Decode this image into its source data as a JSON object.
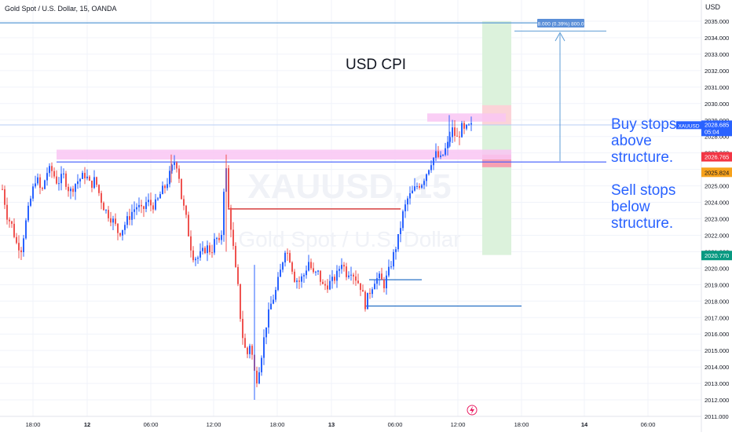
{
  "header": {
    "symbol_title": "Gold Spot / U.S. Dollar, 15, OANDA",
    "currency": "USD"
  },
  "annotations": {
    "event": "USD CPI",
    "buy_note": "Buy stops\nabove\nstructure.",
    "sell_note": "Sell stops\nbelow\nstructure.",
    "measure_label": "8.000 (0.39%) 800.0"
  },
  "watermark": {
    "symbol": "XAUUSD, 15",
    "name": "Gold Spot / U.S. Dollar"
  },
  "colors": {
    "up": "#2962ff",
    "down": "#ef5350",
    "zone_pink": "#f9c6f3",
    "green_zone": "#dcf2dc",
    "line_blue": "#5b9bd5",
    "grid": "#f0f3fa",
    "axis_text": "#131722"
  },
  "chart_data": {
    "type": "candlestick",
    "symbol": "XAUUSD",
    "interval": "15",
    "ylim": [
      2011.0,
      2036.0
    ],
    "y_ticks": [
      "2011.000",
      "2012.000",
      "2013.000",
      "2014.000",
      "2015.000",
      "2016.000",
      "2017.000",
      "2018.000",
      "2019.000",
      "2020.000",
      "2021.000",
      "2022.000",
      "2023.000",
      "2024.000",
      "2025.000",
      "2026.000",
      "2027.000",
      "2028.000",
      "2029.000",
      "2030.000",
      "2031.000",
      "2032.000",
      "2033.000",
      "2034.000",
      "2035.000"
    ],
    "x_ticks": [
      "18:00",
      "12",
      "06:00",
      "12:00",
      "18:00",
      "13",
      "06:00",
      "12:00",
      "18:00",
      "14",
      "06:00"
    ],
    "price_labels": [
      {
        "name": "XAUUSD",
        "value": "2028.685",
        "sub": "05:04",
        "color": "#2962ff"
      },
      {
        "name": "",
        "value": "2026.765",
        "color": "#f23645"
      },
      {
        "name": "",
        "value": "2025.824",
        "color": "#f7a21b"
      },
      {
        "name": "",
        "value": "2020.770",
        "color": "#089981"
      }
    ],
    "levels": {
      "top_line": 2034.9,
      "upper_target": 2034.4,
      "buy_zone": [
        2026.6,
        2027.2
      ],
      "sell_zone": [
        2025.6,
        2026.8
      ],
      "current": 2028.7,
      "cpi_low_line": 2023.6,
      "mid_line": 2019.3,
      "low_line": 2017.7,
      "green_zone": [
        2020.8,
        2035.0
      ],
      "top_pink": [
        2028.9,
        2029.4
      ]
    },
    "candles_note": "Approximate 15-minute OHLC series read from the chart",
    "candles": []
  }
}
